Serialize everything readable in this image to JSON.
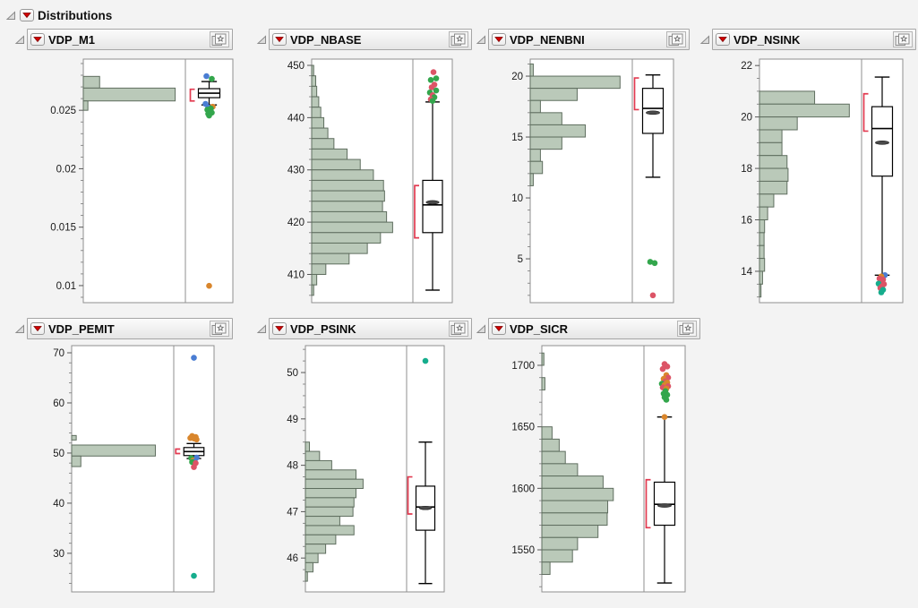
{
  "header": {
    "title": "Distributions"
  },
  "icons": {
    "disclosure": "disclosure-triangle-icon",
    "menu": "red-triangle-menu-icon",
    "pin": "bookmark-star-icon"
  },
  "palette": {
    "hist_fill": "#bac9b9",
    "hist_stroke": "#5f6e5f",
    "frame_stroke": "#8f8f8f",
    "bracket": "#e23a50",
    "blue": "#4a7dd3",
    "green": "#33a64c",
    "orange": "#d9862c",
    "red": "#dc5466",
    "teal": "#16ad8d"
  },
  "chart_data": [
    {
      "type": "histogram+boxplot",
      "title": "VDP_M1",
      "ylim": [
        0.00854,
        0.02938
      ],
      "yticks": [
        {
          "v": 0.025,
          "label": "0.025"
        },
        {
          "v": 0.02,
          "label": "0.02"
        },
        {
          "v": 0.015,
          "label": "0.015"
        },
        {
          "v": 0.01,
          "label": "0.01"
        }
      ],
      "minor_step": 0.001,
      "bins": [
        [
          0.0269,
          0.0279,
          0.16
        ],
        [
          0.0258,
          0.0269,
          0.9
        ],
        [
          0.025,
          0.0258,
          0.045
        ]
      ],
      "box": {
        "lo": 0.02546,
        "q1": 0.02608,
        "med": 0.02646,
        "q3": 0.02685,
        "hi": 0.02746,
        "mean": null
      },
      "bracket": [
        0.0258,
        0.0268
      ],
      "outliers": [
        [
          -3,
          0.02792,
          "blue"
        ],
        [
          3,
          0.02769,
          "green"
        ],
        [
          -4,
          0.02555,
          "blue"
        ],
        [
          4,
          0.02531,
          "orange"
        ],
        [
          -1,
          0.02525,
          "blue"
        ],
        [
          2,
          0.02515,
          "green"
        ],
        [
          -2,
          0.02505,
          "green"
        ],
        [
          1,
          0.0249,
          "green"
        ],
        [
          3,
          0.0248,
          "green"
        ],
        [
          -1,
          0.0247,
          "green"
        ],
        [
          0,
          0.02455,
          "green"
        ],
        [
          0,
          0.00998,
          "orange"
        ]
      ]
    },
    {
      "type": "histogram+boxplot",
      "title": "VDP_NBASE",
      "ylim": [
        404.6,
        451.2
      ],
      "yticks": [
        {
          "v": 450,
          "label": "450"
        },
        {
          "v": 440,
          "label": "440"
        },
        {
          "v": 430,
          "label": "430"
        },
        {
          "v": 420,
          "label": "420"
        },
        {
          "v": 410,
          "label": "410"
        }
      ],
      "minor_step": 2,
      "bins": [
        [
          448,
          450,
          0.02
        ],
        [
          446,
          448,
          0.04
        ],
        [
          444,
          446,
          0.05
        ],
        [
          442,
          444,
          0.07
        ],
        [
          440,
          442,
          0.09
        ],
        [
          438,
          440,
          0.12
        ],
        [
          436,
          438,
          0.16
        ],
        [
          434,
          436,
          0.22
        ],
        [
          432,
          434,
          0.35
        ],
        [
          430,
          432,
          0.48
        ],
        [
          428,
          430,
          0.61
        ],
        [
          426,
          428,
          0.71
        ],
        [
          424,
          426,
          0.72
        ],
        [
          422,
          424,
          0.7
        ],
        [
          420,
          422,
          0.74
        ],
        [
          418,
          420,
          0.8
        ],
        [
          416,
          418,
          0.68
        ],
        [
          414,
          416,
          0.55
        ],
        [
          412,
          414,
          0.37
        ],
        [
          410,
          412,
          0.14
        ],
        [
          408,
          410,
          0.05
        ],
        [
          406,
          408,
          0.02
        ]
      ],
      "box": {
        "lo": 407,
        "q1": 418,
        "med": 423.3,
        "q3": 428,
        "hi": 443,
        "mean": 423.8
      },
      "bracket": [
        417,
        427
      ],
      "outliers": [
        [
          1,
          448.7,
          "red"
        ],
        [
          4,
          447.5,
          "green"
        ],
        [
          -2,
          447.2,
          "green"
        ],
        [
          2,
          446.3,
          "red"
        ],
        [
          -1,
          445.8,
          "red"
        ],
        [
          4,
          445.2,
          "green"
        ],
        [
          -3,
          444.8,
          "green"
        ],
        [
          0,
          444.3,
          "red"
        ],
        [
          2,
          443.9,
          "green"
        ],
        [
          -2,
          443.5,
          "red"
        ],
        [
          0,
          443.2,
          "green"
        ]
      ]
    },
    {
      "type": "histogram+boxplot",
      "title": "VDP_NENBNI",
      "ylim": [
        1.4,
        21.4
      ],
      "yticks": [
        {
          "v": 20,
          "label": "20"
        },
        {
          "v": 15,
          "label": "15"
        },
        {
          "v": 10,
          "label": "10"
        },
        {
          "v": 5,
          "label": "5"
        }
      ],
      "minor_step": 1,
      "bins": [
        [
          20,
          21,
          0.03
        ],
        [
          19,
          20,
          0.88
        ],
        [
          18,
          19,
          0.46
        ],
        [
          17,
          18,
          0.1
        ],
        [
          16,
          17,
          0.31
        ],
        [
          15,
          16,
          0.54
        ],
        [
          14,
          15,
          0.31
        ],
        [
          13,
          14,
          0.1
        ],
        [
          12,
          13,
          0.12
        ],
        [
          11,
          12,
          0.03
        ]
      ],
      "box": {
        "lo": 11.7,
        "q1": 15.3,
        "med": 17.35,
        "q3": 19.0,
        "hi": 20.1,
        "mean": 17.0
      },
      "bracket": [
        17.25,
        19.85
      ],
      "outliers": [
        [
          -3,
          4.75,
          "green"
        ],
        [
          2,
          4.65,
          "green"
        ],
        [
          0,
          2.0,
          "red"
        ]
      ]
    },
    {
      "type": "histogram+boxplot",
      "title": "VDP_NSINK",
      "ylim": [
        12.78,
        22.25
      ],
      "yticks": [
        {
          "v": 22,
          "label": "22"
        },
        {
          "v": 20,
          "label": "20"
        },
        {
          "v": 18,
          "label": "18"
        },
        {
          "v": 16,
          "label": "16"
        },
        {
          "v": 14,
          "label": "14"
        }
      ],
      "minor_step": 0.5,
      "bins": [
        [
          20.5,
          21.0,
          0.54
        ],
        [
          20.0,
          20.5,
          0.88
        ],
        [
          19.5,
          20.0,
          0.37
        ],
        [
          19.0,
          19.5,
          0.22
        ],
        [
          18.5,
          19.0,
          0.22
        ],
        [
          18.0,
          18.5,
          0.27
        ],
        [
          17.5,
          18.0,
          0.28
        ],
        [
          17.0,
          17.5,
          0.27
        ],
        [
          16.5,
          17.0,
          0.14
        ],
        [
          16.0,
          16.5,
          0.08
        ],
        [
          15.5,
          16.0,
          0.05
        ],
        [
          15.0,
          15.5,
          0.045
        ],
        [
          14.5,
          15.0,
          0.045
        ],
        [
          14.0,
          14.5,
          0.05
        ],
        [
          13.5,
          14.0,
          0.03
        ],
        [
          13.0,
          13.5,
          0.015
        ]
      ],
      "box": {
        "lo": 13.85,
        "q1": 17.7,
        "med": 19.55,
        "q3": 20.4,
        "hi": 21.55,
        "mean": 19.0
      },
      "bracket": [
        19.45,
        20.9
      ],
      "outliers": [
        [
          3,
          13.85,
          "blue"
        ],
        [
          -1,
          13.8,
          "orange"
        ],
        [
          -3,
          13.72,
          "red"
        ],
        [
          1,
          13.68,
          "red"
        ],
        [
          -2,
          13.58,
          "red"
        ],
        [
          -4,
          13.52,
          "teal"
        ],
        [
          2,
          13.5,
          "red"
        ],
        [
          0,
          13.42,
          "red"
        ],
        [
          -2,
          13.35,
          "red"
        ],
        [
          1,
          13.28,
          "teal"
        ],
        [
          -1,
          13.18,
          "teal"
        ]
      ]
    },
    {
      "type": "histogram+boxplot",
      "title": "VDP_PEMIT",
      "ylim": [
        22.3,
        71.43
      ],
      "yticks": [
        {
          "v": 70,
          "label": "70"
        },
        {
          "v": 60,
          "label": "60"
        },
        {
          "v": 50,
          "label": "50"
        },
        {
          "v": 40,
          "label": "40"
        },
        {
          "v": 30,
          "label": "30"
        }
      ],
      "minor_step": 2,
      "bins": [
        [
          52.6,
          53.5,
          0.045
        ],
        [
          49.4,
          51.6,
          0.82
        ],
        [
          47.3,
          49.4,
          0.09
        ]
      ],
      "box": {
        "lo": 48.9,
        "q1": 49.5,
        "med": 50.3,
        "q3": 51.1,
        "hi": 51.9,
        "mean": null
      },
      "bracket": [
        49.9,
        50.8
      ],
      "outliers": [
        [
          -2,
          53.4,
          "orange"
        ],
        [
          2,
          53.2,
          "orange"
        ],
        [
          -4,
          53.0,
          "orange"
        ],
        [
          0,
          52.9,
          "orange"
        ],
        [
          3,
          52.7,
          "orange"
        ],
        [
          3,
          49.1,
          "blue"
        ],
        [
          -3,
          49.0,
          "green"
        ],
        [
          -1,
          48.5,
          "orange"
        ],
        [
          1,
          48.3,
          "blue"
        ],
        [
          -2,
          48.2,
          "green"
        ],
        [
          2,
          48.0,
          "red"
        ],
        [
          0,
          47.2,
          "red"
        ],
        [
          0,
          69.0,
          "blue"
        ],
        [
          0,
          25.5,
          "teal"
        ]
      ]
    },
    {
      "type": "histogram+boxplot",
      "title": "VDP_PSINK",
      "ylim": [
        45.27,
        50.58
      ],
      "yticks": [
        {
          "v": 50,
          "label": "50"
        },
        {
          "v": 49,
          "label": "49"
        },
        {
          "v": 48,
          "label": "48"
        },
        {
          "v": 47,
          "label": "47"
        },
        {
          "v": 46,
          "label": "46"
        }
      ],
      "minor_step": 0.25,
      "bins": [
        [
          48.3,
          48.5,
          0.04
        ],
        [
          48.1,
          48.3,
          0.14
        ],
        [
          47.9,
          48.1,
          0.26
        ],
        [
          47.7,
          47.9,
          0.5
        ],
        [
          47.5,
          47.7,
          0.57
        ],
        [
          47.3,
          47.5,
          0.5
        ],
        [
          47.1,
          47.3,
          0.48
        ],
        [
          46.9,
          47.1,
          0.47
        ],
        [
          46.7,
          46.9,
          0.34
        ],
        [
          46.5,
          46.7,
          0.48
        ],
        [
          46.3,
          46.5,
          0.3
        ],
        [
          46.1,
          46.3,
          0.2
        ],
        [
          45.9,
          46.1,
          0.125
        ],
        [
          45.7,
          45.9,
          0.075
        ],
        [
          45.5,
          45.7,
          0.02
        ]
      ],
      "box": {
        "lo": 45.45,
        "q1": 46.6,
        "med": 47.1,
        "q3": 47.55,
        "hi": 48.5,
        "mean": 47.08
      },
      "bracket": [
        46.95,
        47.75
      ],
      "outliers": [
        [
          0,
          50.25,
          "teal"
        ]
      ]
    },
    {
      "type": "histogram+boxplot",
      "title": "VDP_SICR",
      "ylim": [
        1515.8,
        1716
      ],
      "yticks": [
        {
          "v": 1700,
          "label": "1700"
        },
        {
          "v": 1650,
          "label": "1650"
        },
        {
          "v": 1600,
          "label": "1600"
        },
        {
          "v": 1550,
          "label": "1550"
        }
      ],
      "minor_step": 10,
      "bins": [
        [
          1700,
          1710,
          0.02
        ],
        [
          1680,
          1690,
          0.03
        ],
        [
          1640,
          1650,
          0.1
        ],
        [
          1630,
          1640,
          0.17
        ],
        [
          1620,
          1630,
          0.23
        ],
        [
          1610,
          1620,
          0.35
        ],
        [
          1600,
          1610,
          0.6
        ],
        [
          1590,
          1600,
          0.7
        ],
        [
          1580,
          1590,
          0.645
        ],
        [
          1570,
          1580,
          0.64
        ],
        [
          1560,
          1570,
          0.55
        ],
        [
          1550,
          1560,
          0.35
        ],
        [
          1540,
          1550,
          0.3
        ],
        [
          1530,
          1540,
          0.08
        ]
      ],
      "box": {
        "lo": 1523,
        "q1": 1570,
        "med": 1587,
        "q3": 1605,
        "hi": 1658,
        "mean": 1586
      },
      "bracket": [
        1568,
        1607
      ],
      "outliers": [
        [
          0,
          1701,
          "red"
        ],
        [
          3,
          1699,
          "red"
        ],
        [
          -2,
          1697,
          "red"
        ],
        [
          2,
          1692,
          "orange"
        ],
        [
          4,
          1690,
          "red"
        ],
        [
          -1,
          1689,
          "orange"
        ],
        [
          1,
          1687,
          "red"
        ],
        [
          3,
          1686,
          "orange"
        ],
        [
          -3,
          1685,
          "green"
        ],
        [
          0,
          1684,
          "orange"
        ],
        [
          4,
          1683,
          "red"
        ],
        [
          -2,
          1682,
          "red"
        ],
        [
          2,
          1681,
          "orange"
        ],
        [
          1,
          1679,
          "green"
        ],
        [
          -1,
          1677,
          "green"
        ],
        [
          3,
          1676,
          "green"
        ],
        [
          0,
          1674,
          "green"
        ],
        [
          2,
          1672,
          "green"
        ],
        [
          0,
          1658,
          "orange"
        ]
      ]
    }
  ]
}
